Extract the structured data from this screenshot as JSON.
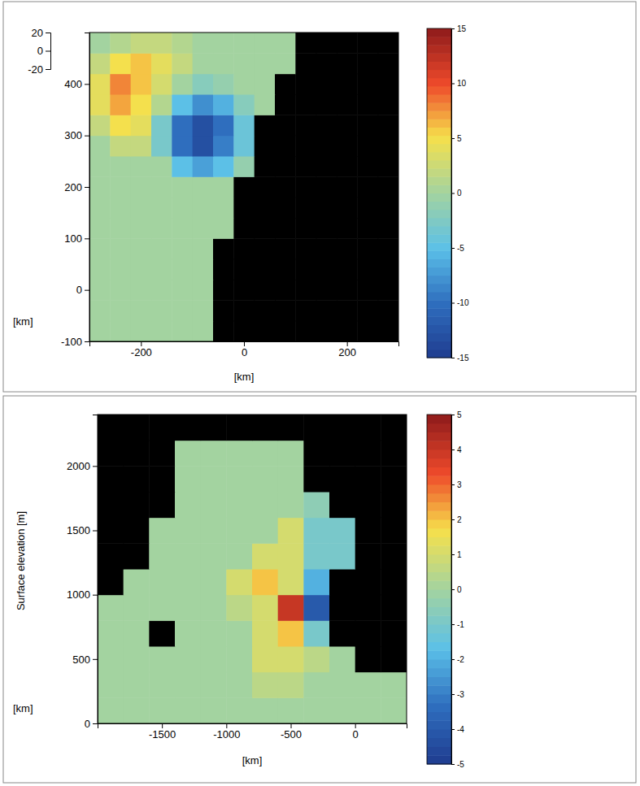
{
  "chart_data": [
    {
      "type": "heatmap",
      "x": [
        -280,
        -240,
        -200,
        -160,
        -120,
        -80,
        -40,
        0,
        40,
        80,
        120,
        160,
        200,
        240,
        280
      ],
      "y": [
        -80,
        -40,
        0,
        40,
        80,
        120,
        160,
        200,
        240,
        280,
        320,
        360,
        400,
        440,
        480
      ],
      "z": [
        [
          0,
          0,
          0,
          0,
          0,
          0,
          null,
          null,
          null,
          null,
          null,
          null,
          null,
          null,
          null
        ],
        [
          0,
          0,
          0,
          0,
          0,
          0,
          null,
          null,
          null,
          null,
          null,
          null,
          null,
          null,
          null
        ],
        [
          0,
          0,
          0,
          0,
          0,
          0,
          null,
          null,
          null,
          null,
          null,
          null,
          null,
          null,
          null
        ],
        [
          0,
          0,
          0,
          0,
          0,
          0,
          null,
          null,
          null,
          null,
          null,
          null,
          null,
          null,
          null
        ],
        [
          0,
          0,
          0,
          0,
          0,
          0,
          null,
          null,
          null,
          null,
          null,
          null,
          null,
          null,
          null
        ],
        [
          0,
          0,
          0,
          0,
          0,
          0,
          0,
          null,
          null,
          null,
          null,
          null,
          null,
          null,
          null
        ],
        [
          0,
          0,
          0,
          0,
          0,
          0,
          0,
          null,
          null,
          null,
          null,
          null,
          null,
          null,
          null
        ],
        [
          0,
          0,
          0,
          0,
          0,
          0,
          0,
          null,
          null,
          null,
          null,
          null,
          null,
          null,
          null
        ],
        [
          0,
          0,
          0,
          0,
          -5,
          -7,
          -5,
          -1,
          null,
          null,
          null,
          null,
          null,
          null,
          null
        ],
        [
          0,
          2,
          2,
          -3,
          -10,
          -13,
          -9,
          -4,
          null,
          null,
          null,
          null,
          null,
          null,
          null
        ],
        [
          2,
          5,
          4,
          -3,
          -10,
          -13,
          -10,
          -4,
          null,
          null,
          null,
          null,
          null,
          null,
          null
        ],
        [
          4,
          7,
          5,
          1,
          -5,
          -8,
          -6,
          -2,
          0,
          null,
          null,
          null,
          null,
          null,
          null
        ],
        [
          4,
          8,
          6,
          3,
          0,
          -2,
          -1,
          0,
          0,
          null,
          null,
          null,
          null,
          null,
          null
        ],
        [
          2,
          5,
          6,
          4,
          2,
          0,
          0,
          0,
          0,
          0,
          null,
          null,
          null,
          null,
          null
        ],
        [
          0,
          1,
          2,
          2,
          1,
          0,
          0,
          0,
          0,
          0,
          null,
          null,
          null,
          null,
          null
        ]
      ],
      "xlim": [
        -300,
        300
      ],
      "ylim": [
        -100,
        500
      ],
      "xticks": [
        -200,
        0,
        200
      ],
      "yticks": [
        -100,
        0,
        100,
        200,
        300,
        400
      ],
      "zlim": [
        -20,
        20
      ],
      "zticks": [
        -20,
        0,
        20
      ],
      "x_label": "[km]",
      "y_label": "[km]",
      "colorbar": {
        "range": [
          -15,
          15
        ],
        "ticks": [
          -15,
          -10,
          -5,
          0,
          5,
          10,
          15
        ]
      }
    },
    {
      "type": "heatmap",
      "x": [
        -1900,
        -1700,
        -1500,
        -1300,
        -1100,
        -900,
        -700,
        -500,
        -300,
        -100,
        100,
        300
      ],
      "y": [
        100,
        300,
        500,
        700,
        900,
        1100,
        1300,
        1500,
        1700,
        1900,
        2100,
        2300
      ],
      "z": [
        [
          0,
          0,
          0,
          0,
          0,
          0,
          0,
          0,
          0,
          0,
          0,
          0
        ],
        [
          0,
          0,
          0,
          0,
          0,
          0,
          0.5,
          0.5,
          0,
          0,
          0,
          0
        ],
        [
          0,
          0,
          0,
          0,
          0,
          0,
          1,
          1,
          0.5,
          0,
          null,
          null
        ],
        [
          0,
          0,
          null,
          0,
          0,
          0,
          1,
          2,
          -1,
          null,
          null,
          null
        ],
        [
          0,
          0,
          0,
          0,
          0,
          0.5,
          1,
          4,
          -4,
          null,
          null,
          null
        ],
        [
          null,
          0,
          0,
          0,
          0,
          1,
          2,
          1,
          -2,
          null,
          null,
          null
        ],
        [
          null,
          null,
          0,
          0,
          0,
          0,
          1,
          1,
          -1,
          -1,
          null,
          null
        ],
        [
          null,
          null,
          0,
          0,
          0,
          0,
          0,
          1,
          -1,
          -1,
          null,
          null
        ],
        [
          null,
          null,
          null,
          0,
          0,
          0,
          0,
          0,
          -0.5,
          null,
          null,
          null
        ],
        [
          null,
          null,
          null,
          0,
          0,
          0,
          0,
          0,
          null,
          null,
          null,
          null
        ],
        [
          null,
          null,
          null,
          0,
          0,
          0,
          0,
          0,
          null,
          null,
          null,
          null
        ],
        [
          null,
          null,
          null,
          null,
          null,
          null,
          null,
          null,
          null,
          null,
          null,
          null
        ]
      ],
      "xlim": [
        -2000,
        400
      ],
      "ylim": [
        0,
        2400
      ],
      "xticks": [
        -1500,
        -1000,
        -500,
        0
      ],
      "yticks": [
        0,
        500,
        1000,
        1500,
        2000
      ],
      "x_label": "[km]",
      "y_label": "[km]",
      "z_label": "Surface elevation [m]",
      "colorbar": {
        "range": [
          -5,
          5
        ],
        "ticks": [
          -5,
          -4,
          -3,
          -2,
          -1,
          0,
          1,
          2,
          3,
          4,
          5
        ]
      }
    }
  ]
}
